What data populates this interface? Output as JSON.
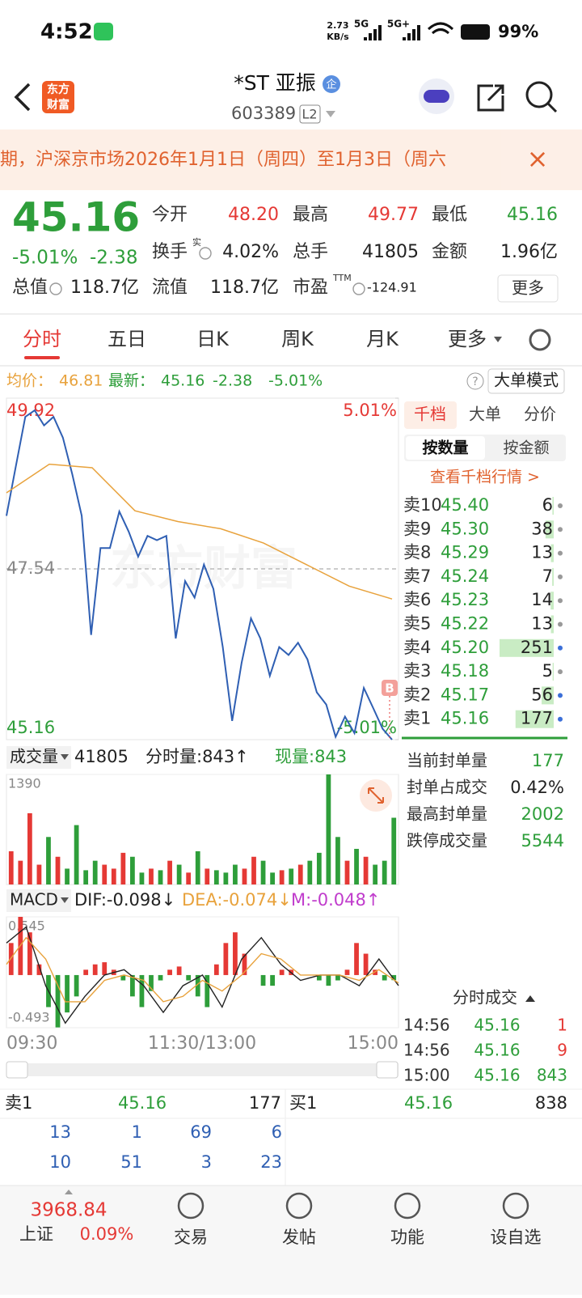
{
  "status": {
    "time": "4:52",
    "speed": "2.73",
    "speed_unit": "KB/s",
    "net1": "5G",
    "net2": "5G+",
    "battery": "99%"
  },
  "header": {
    "logo": [
      "东方",
      "财富"
    ],
    "title": "*ST 亚振",
    "badge": "企",
    "code": "603389",
    "level": "L2"
  },
  "notice": {
    "text": "期，沪深京市场2026年1月1日（周四）至1月3日（周六",
    "close": "×"
  },
  "quote": {
    "price": "45.16",
    "pct": "-5.01%",
    "change": "-2.38",
    "color": "#2e9e3a",
    "stats": [
      {
        "label": "今开",
        "value": "48.20",
        "color": "#e53935"
      },
      {
        "label": "最高",
        "value": "49.77",
        "color": "#e53935"
      },
      {
        "label": "最低",
        "value": "45.16",
        "color": "#2e9e3a"
      },
      {
        "label": "换手",
        "note": "实",
        "icon": true,
        "value": "4.02%",
        "color": "#222"
      },
      {
        "label": "总手",
        "value": "41805",
        "color": "#222"
      },
      {
        "label": "金额",
        "value": "1.96亿",
        "color": "#222"
      },
      {
        "label": "总值",
        "icon": true,
        "value": "118.7亿",
        "color": "#222"
      },
      {
        "label": "流值",
        "value": "118.7亿",
        "color": "#222"
      },
      {
        "label": "市盈",
        "note": "TTM",
        "icon": true,
        "value": "-124.91",
        "color": "#222"
      }
    ],
    "more": "更多"
  },
  "tabs": {
    "items": [
      "分时",
      "五日",
      "日K",
      "周K",
      "月K",
      "更多"
    ],
    "active": 0
  },
  "info": {
    "avg_label": "均价：",
    "avg": "46.81",
    "last_label": "最新：",
    "last": "45.16",
    "change": "-2.38",
    "pct": "-5.01%",
    "help": "?",
    "mode": "大单模式"
  },
  "chart_data": [
    {
      "type": "line",
      "watermark": "东方财富",
      "marker": "B",
      "ylim": [
        45.16,
        49.92
      ],
      "yticks": [
        49.92,
        47.54,
        45.16
      ],
      "ytick_colors": [
        "#e53935",
        "#888888",
        "#2e9e3a"
      ],
      "y2lim": [
        -5.01,
        5.01
      ],
      "y2ticks": [
        {
          "value": 5.01,
          "label": "5.01%"
        },
        {
          "value": -5.01,
          "label": "-5.01%"
        }
      ],
      "y2tick_colors": [
        "#e53935",
        "#2e9e3a"
      ],
      "xtick_labels": [
        "09:30",
        "11:30/13:00",
        "15:00"
      ],
      "series": [
        {
          "color": "#2f5fb3",
          "values": [
            48.28,
            48.97,
            49.66,
            49.75,
            49.54,
            49.66,
            49.37,
            48.86,
            48.28,
            46.62,
            47.83,
            47.83,
            48.34,
            48.06,
            47.71,
            48.0,
            47.94,
            48.0,
            46.57,
            47.37,
            47.14,
            47.6,
            47.26,
            46.45,
            45.42,
            46.23,
            46.85,
            46.57,
            46.05,
            46.45,
            46.34,
            46.51,
            46.28,
            45.82,
            45.65,
            45.2,
            45.48,
            45.25,
            45.88,
            45.6,
            45.31,
            45.16
          ]
        },
        {
          "color": "#e8a23c",
          "values": [
            48.6,
            49.0,
            48.95,
            48.35,
            48.2,
            48.1,
            47.9,
            47.6,
            47.3,
            47.12
          ]
        }
      ]
    },
    {
      "type": "bar",
      "title": "成交量",
      "total": "41805",
      "tick_volume": "分时量:843↑",
      "current": "现量:843",
      "ylim": [
        0,
        1390
      ],
      "yticks": [
        1390
      ],
      "up_color": "#e53935",
      "down_color": "#2e9e3a",
      "values": [
        420,
        300,
        900,
        250,
        600,
        350,
        200,
        750,
        180,
        300,
        250,
        200,
        400,
        350,
        150,
        200,
        180,
        300,
        250,
        150,
        420,
        200,
        180,
        150,
        250,
        200,
        350,
        300,
        150,
        180,
        200,
        250,
        300,
        400,
        1390,
        600,
        300,
        450,
        350,
        250,
        300,
        843
      ]
    },
    {
      "type": "bar",
      "title": "MACD",
      "dif_label": "DIF:-0.098↓",
      "dea_label": "DEA:-0.074↓",
      "m_label": "M:-0.048↑",
      "ylim": [
        -0.493,
        0.545
      ],
      "yticks": [
        0.545,
        -0.493
      ],
      "up_color": "#e53935",
      "down_color": "#2e9e3a",
      "values": [
        0.3,
        0.545,
        0.4,
        0.1,
        -0.3,
        -0.49,
        -0.35,
        -0.2,
        0.05,
        0.1,
        0.12,
        0.05,
        -0.05,
        -0.2,
        -0.3,
        -0.15,
        -0.05,
        0.05,
        0.08,
        -0.05,
        -0.2,
        -0.3,
        0.1,
        0.3,
        0.4,
        0.2,
        0.0,
        -0.1,
        -0.1,
        0.05,
        0.05,
        0.0,
        0.0,
        -0.05,
        -0.1,
        -0.05,
        0.05,
        0.3,
        0.2,
        0.05,
        -0.05,
        -0.048
      ],
      "series": [
        {
          "color": "#222222",
          "values": [
            0.3,
            0.45,
            -0.1,
            -0.45,
            -0.2,
            0.0,
            0.05,
            -0.1,
            -0.35,
            -0.1,
            0.0,
            -0.3,
            0.15,
            0.35,
            0.1,
            -0.05,
            0.0,
            0.0,
            -0.1,
            0.15,
            -0.098
          ]
        },
        {
          "color": "#e8a23c",
          "values": [
            0.1,
            0.35,
            0.15,
            -0.25,
            -0.25,
            -0.05,
            0.0,
            -0.05,
            -0.25,
            -0.2,
            -0.05,
            -0.15,
            0.0,
            0.2,
            0.15,
            0.0,
            0.0,
            0.0,
            -0.05,
            0.05,
            -0.074
          ]
        }
      ]
    }
  ],
  "book": {
    "tabs": [
      "千档",
      "大单",
      "分价"
    ],
    "sort": [
      "按数量",
      "按金额"
    ],
    "link": "查看千档行情 >",
    "asks": [
      {
        "label": "卖10",
        "price": "45.40",
        "qty": 6,
        "dot": "#999999"
      },
      {
        "label": "卖9",
        "price": "45.30",
        "qty": 38,
        "dot": "#999999"
      },
      {
        "label": "卖8",
        "price": "45.29",
        "qty": 13,
        "dot": "#999999"
      },
      {
        "label": "卖7",
        "price": "45.24",
        "qty": 7,
        "dot": "#999999"
      },
      {
        "label": "卖6",
        "price": "45.23",
        "qty": 14,
        "dot": "#999999"
      },
      {
        "label": "卖5",
        "price": "45.22",
        "qty": 13,
        "dot": "#999999"
      },
      {
        "label": "卖4",
        "price": "45.20",
        "qty": 251,
        "dot": "#3b6fd8"
      },
      {
        "label": "卖3",
        "price": "45.18",
        "qty": 5,
        "dot": "#999999"
      },
      {
        "label": "卖2",
        "price": "45.17",
        "qty": 56,
        "dot": "#3b6fd8"
      },
      {
        "label": "卖1",
        "price": "45.16",
        "qty": 177,
        "dot": "#3b6fd8"
      }
    ],
    "seal": [
      {
        "label": "当前封单量",
        "value": "177",
        "color": "#2e9e3a"
      },
      {
        "label": "封单占成交",
        "value": "0.42%",
        "color": "#222"
      },
      {
        "label": "最高封单量",
        "value": "2002",
        "color": "#2e9e3a"
      },
      {
        "label": "跌停成交量",
        "value": "5544",
        "color": "#2e9e3a"
      }
    ],
    "trades_title": "分时成交",
    "trades": [
      {
        "time": "14:56",
        "price": "45.16",
        "qty": "1",
        "color": "#e53935"
      },
      {
        "time": "14:56",
        "price": "45.16",
        "qty": "9",
        "color": "#e53935"
      },
      {
        "time": "15:00",
        "price": "45.16",
        "qty": "843",
        "color": "#2e9e3a"
      }
    ]
  },
  "level1": {
    "sell": [
      "卖1",
      "45.16",
      "177"
    ],
    "buy": [
      "买1",
      "45.16",
      "838"
    ],
    "rows": [
      [
        13,
        1,
        69,
        6
      ],
      [
        10,
        51,
        3,
        23
      ]
    ]
  },
  "footer": {
    "index": "3968.84",
    "index_name": "上证",
    "index_pct": "0.09%",
    "nav": [
      "交易",
      "发帖",
      "功能",
      "设自选"
    ]
  }
}
